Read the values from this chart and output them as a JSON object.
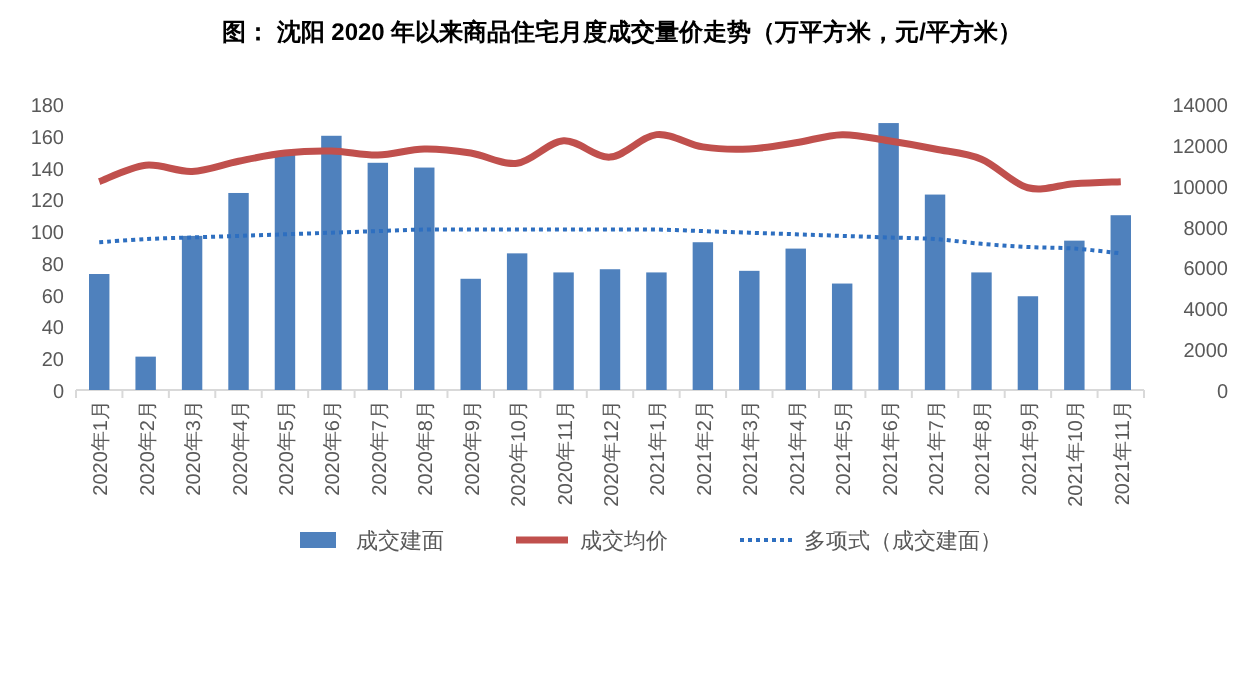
{
  "chart_data": {
    "type": "bar",
    "title": "图：  沈阳 2020 年以来商品住宅月度成交量价走势（万平方米，元/平方米）",
    "categories": [
      "2020年1月",
      "2020年2月",
      "2020年3月",
      "2020年4月",
      "2020年5月",
      "2020年6月",
      "2020年7月",
      "2020年8月",
      "2020年9月",
      "2020年10月",
      "2020年11月",
      "2020年12月",
      "2021年1月",
      "2021年2月",
      "2021年3月",
      "2021年4月",
      "2021年5月",
      "2021年6月",
      "2021年7月",
      "2021年8月",
      "2021年9月",
      "2021年10月",
      "2021年11月"
    ],
    "series": [
      {
        "name": "成交建面",
        "color": "#4f81bd",
        "values": [
          73,
          21,
          97,
          124,
          148,
          160,
          143,
          140,
          70,
          86,
          74,
          76,
          74,
          93,
          75,
          89,
          67,
          168,
          123,
          74,
          59,
          94,
          110
        ]
      },
      {
        "name": "成交均价",
        "type": "line",
        "axis": "y2",
        "color": "#c0504d",
        "line_style": "solid",
        "values": [
          10200,
          11000,
          10700,
          11200,
          11600,
          11700,
          11500,
          11800,
          11600,
          11100,
          12200,
          11400,
          12500,
          11900,
          11800,
          12100,
          12500,
          12200,
          11800,
          11300,
          9900,
          10100,
          10200
        ]
      },
      {
        "name": "多项式（成交建面）",
        "type": "line",
        "color": "#2e6fc0",
        "line_style": "dotted",
        "values": [
          93,
          95,
          96,
          97,
          98,
          99,
          100,
          101,
          101,
          101,
          101,
          101,
          101,
          100,
          99,
          98,
          97,
          96,
          95,
          92,
          90,
          89,
          86
        ]
      }
    ],
    "ylim": [
      0,
      180
    ],
    "yticks": [
      0,
      20,
      40,
      60,
      80,
      100,
      120,
      140,
      160,
      180
    ],
    "y2lim": [
      0,
      14000
    ],
    "y2ticks": [
      0,
      2000,
      4000,
      6000,
      8000,
      10000,
      12000,
      14000
    ],
    "legend": "bottom"
  }
}
